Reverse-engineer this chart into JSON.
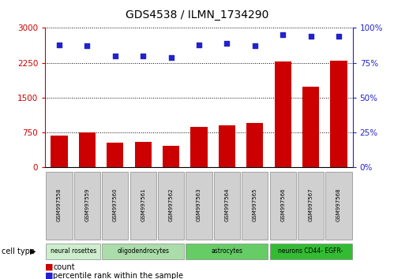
{
  "title": "GDS4538 / ILMN_1734290",
  "samples": [
    "GSM997558",
    "GSM997559",
    "GSM997560",
    "GSM997561",
    "GSM997562",
    "GSM997563",
    "GSM997564",
    "GSM997565",
    "GSM997566",
    "GSM997567",
    "GSM997568"
  ],
  "counts": [
    690,
    760,
    530,
    545,
    470,
    870,
    900,
    960,
    2280,
    1730,
    2290
  ],
  "percentiles": [
    88,
    87,
    80,
    80,
    79,
    88,
    89,
    87,
    95,
    94,
    94
  ],
  "cell_types": [
    {
      "label": "neural rosettes",
      "start": 0,
      "end": 2,
      "color": "#cceecc"
    },
    {
      "label": "oligodendrocytes",
      "start": 2,
      "end": 5,
      "color": "#aaddaa"
    },
    {
      "label": "astrocytes",
      "start": 5,
      "end": 8,
      "color": "#66cc66"
    },
    {
      "label": "neurons CD44- EGFR-",
      "start": 8,
      "end": 11,
      "color": "#33bb33"
    }
  ],
  "bar_color": "#cc0000",
  "dot_color": "#2222cc",
  "left_axis_color": "#cc0000",
  "right_axis_color": "#2222cc",
  "ylim_left": [
    0,
    3000
  ],
  "ylim_right": [
    0,
    100
  ],
  "yticks_left": [
    0,
    750,
    1500,
    2250,
    3000
  ],
  "yticks_right": [
    0,
    25,
    50,
    75,
    100
  ],
  "bg_color": "#ffffff",
  "plot_bg": "#ffffff",
  "tick_label_bg": "#d0d0d0",
  "legend_count_label": "count",
  "legend_pct_label": "percentile rank within the sample",
  "cell_type_label": "cell type"
}
